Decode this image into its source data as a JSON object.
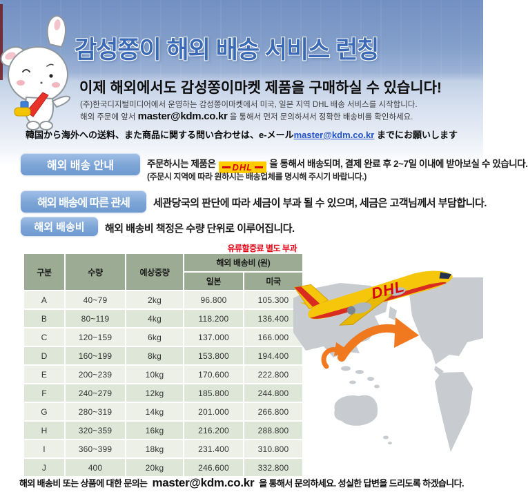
{
  "header": {
    "title": "감성쫑이 해외 배송 서비스 런칭",
    "subtitle": "이제 해외에서도 감성쫑이마켓 제품을 구매하실 수 있습니다!",
    "desc1": "(주)한국디지털미디어에서 운영하는 감성쫑이마켓에서 미국, 일본 지역 DHL 배송 서비스를 시작합니다.",
    "desc2_prefix": "해외 주문에 앞서 ",
    "desc2_email": "master@kdm.co.kr",
    "desc2_suffix": " 을 통해서 먼저 문의하셔서 정확한 배송비를 확인하세요."
  },
  "japanese_notice": {
    "prefix": "韓国から海外への送料、また商品に関する問い合わせは、e-メール",
    "email": "master@kdm.co.kr",
    "suffix": " までにお願いします"
  },
  "sections": {
    "shipping_info": {
      "badge": "해외 배송 안내",
      "text_before_logo": "주문하시는  제품은",
      "dhl_logo_text": "DHL",
      "text_after_logo": "을 통해서 배송되며, 결제 완료 후 2~7일 이내에 받아보실 수 있습니다.",
      "subtext": "(주문시 지역에 따라 원하시는 배송업체를 명시해 주시기 바랍니다.)"
    },
    "customs": {
      "badge": "해외 배송에 따른 관세",
      "text": "세관당국의 판단에 따라 세금이 부과 될 수 있으며, 세금은 고객님께서 부담합니다."
    },
    "shipping_fee": {
      "badge": "해외 배송비",
      "text": "해외 배송비 책정은 수량 단위로 이루어집니다."
    }
  },
  "fee_table": {
    "note": "유류할증료 별도 부과",
    "col_grade": "구분",
    "col_qty": "수량",
    "col_weight": "예상중량",
    "col_group": "해외 배송비 (원)",
    "col_japan": "일본",
    "col_usa": "미국",
    "rows": [
      {
        "grade": "A",
        "qty": "40~79",
        "weight": "2kg",
        "japan": "96.800",
        "usa": "105.300"
      },
      {
        "grade": "B",
        "qty": "80~119",
        "weight": "4kg",
        "japan": "118.200",
        "usa": "136.400"
      },
      {
        "grade": "C",
        "qty": "120~159",
        "weight": "6kg",
        "japan": "137.000",
        "usa": "166.000"
      },
      {
        "grade": "D",
        "qty": "160~199",
        "weight": "8kg",
        "japan": "153.800",
        "usa": "194.400"
      },
      {
        "grade": "E",
        "qty": "200~239",
        "weight": "10kg",
        "japan": "170.600",
        "usa": "222.800"
      },
      {
        "grade": "F",
        "qty": "240~279",
        "weight": "12kg",
        "japan": "185.800",
        "usa": "244.800"
      },
      {
        "grade": "G",
        "qty": "280~319",
        "weight": "14kg",
        "japan": "201.000",
        "usa": "266.800"
      },
      {
        "grade": "H",
        "qty": "320~359",
        "weight": "16kg",
        "japan": "216.200",
        "usa": "288.800"
      },
      {
        "grade": "I",
        "qty": "360~399",
        "weight": "18kg",
        "japan": "231.400",
        "usa": "310.800"
      },
      {
        "grade": "J",
        "qty": "400",
        "weight": "20kg",
        "japan": "246.600",
        "usa": "332.800"
      }
    ]
  },
  "footer": {
    "prefix": "해외 배송비 또는 상품에 대한 문의는 ",
    "email": "master@kdm.co.kr",
    "suffix": " 을 통해서 문의하세요. 성실한 답변을 드리도록 하겠습니다."
  },
  "graphics": {
    "mascot": "bunny-mascot",
    "plane": "dhl-plane",
    "map": "world-map",
    "arrows": "orange-route-arrows"
  },
  "colors": {
    "title_blue": "#3a6ab5",
    "badge_blue": "#7ca5d6",
    "table_header_bg": "#9cab93",
    "row_light": "#ecf0e7",
    "row_dark": "#dee6d7",
    "note_red": "#e60012",
    "dhl_yellow": "#ffcc00",
    "dhl_red": "#d40511",
    "arrow_orange": "#f0781e",
    "map_gray": "#c8ccd1",
    "link_blue": "#2052c8"
  }
}
